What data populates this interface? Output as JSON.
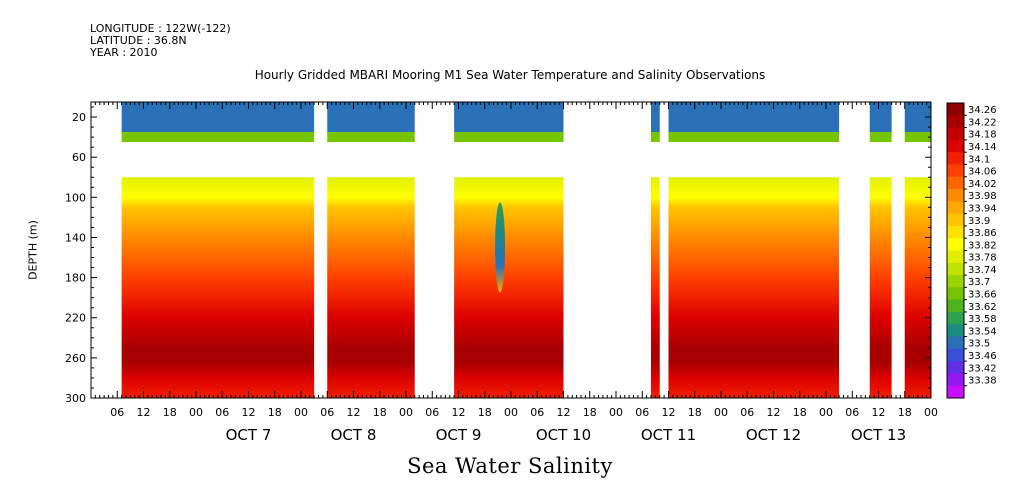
{
  "header": {
    "longitude": "LONGITUDE : 122W(-122)",
    "latitude": "LATITUDE : 36.8N",
    "year": "YEAR : 2010"
  },
  "chart_data": {
    "type": "heatmap",
    "title": "Hourly Gridded MBARI Mooring M1 Sea Water Temperature and Salinity Observations",
    "bottom_label": "Sea Water Salinity",
    "ylabel": "DEPTH (m)",
    "x_start": "2010-10-06 00:00",
    "x_range_hours": [
      0,
      192
    ],
    "x_tick_step_hours": 6,
    "x_tick_labels": [
      "06",
      "12",
      "18",
      "00"
    ],
    "day_labels": [
      {
        "label": "OCT  7",
        "hour": 36
      },
      {
        "label": "OCT  8",
        "hour": 60
      },
      {
        "label": "OCT  9",
        "hour": 84
      },
      {
        "label": "OCT 10",
        "hour": 108
      },
      {
        "label": "OCT 11",
        "hour": 132
      },
      {
        "label": "OCT 12",
        "hour": 156
      },
      {
        "label": "OCT 13",
        "hour": 180
      }
    ],
    "y_range": [
      300,
      5
    ],
    "y_ticks": [
      20,
      60,
      100,
      140,
      180,
      220,
      260,
      300
    ],
    "colorbar_labels": [
      "34.26",
      "34.22",
      "34.18",
      "34.14",
      "34.1",
      "34.06",
      "34.02",
      "33.98",
      "33.94",
      "33.9",
      "33.86",
      "33.82",
      "33.78",
      "33.74",
      "33.7",
      "33.66",
      "33.62",
      "33.58",
      "33.54",
      "33.5",
      "33.46",
      "33.42",
      "33.38"
    ],
    "colorbar_colors": [
      "#8e0000",
      "#a80000",
      "#c40000",
      "#dc0000",
      "#f02000",
      "#ff4000",
      "#ff6600",
      "#ff8a00",
      "#ffa800",
      "#ffc400",
      "#ffe000",
      "#ffff00",
      "#e2f000",
      "#bfe200",
      "#9ad400",
      "#74c400",
      "#4eb31e",
      "#2ca150",
      "#1c8c82",
      "#2a70b6",
      "#3a50d8",
      "#6030e8",
      "#9418f4",
      "#c810ff"
    ],
    "depth_bands": [
      {
        "top": 5,
        "bottom": 35,
        "value": 33.52
      },
      {
        "top": 35,
        "bottom": 45,
        "value": 33.66
      },
      {
        "top": 45,
        "bottom": 80,
        "value": null
      }
    ],
    "profile": [
      {
        "depth": 80,
        "value": 33.78
      },
      {
        "depth": 100,
        "value": 33.82
      },
      {
        "depth": 110,
        "value": 33.88
      },
      {
        "depth": 125,
        "value": 33.93
      },
      {
        "depth": 140,
        "value": 33.98
      },
      {
        "depth": 160,
        "value": 34.02
      },
      {
        "depth": 180,
        "value": 34.05
      },
      {
        "depth": 200,
        "value": 34.08
      },
      {
        "depth": 220,
        "value": 34.12
      },
      {
        "depth": 235,
        "value": 34.16
      },
      {
        "depth": 250,
        "value": 34.2
      },
      {
        "depth": 265,
        "value": 34.2
      },
      {
        "depth": 280,
        "value": 34.14
      },
      {
        "depth": 300,
        "value": 34.08
      }
    ],
    "data_gaps_hours": [
      [
        0,
        7
      ],
      [
        51,
        54
      ],
      [
        74,
        83
      ],
      [
        108,
        128
      ],
      [
        130,
        132
      ],
      [
        171,
        178
      ],
      [
        183,
        186
      ]
    ],
    "fresh_intrusion": {
      "hour": 93.5,
      "depth_top": 105,
      "depth_bottom": 195,
      "value": 33.54
    }
  }
}
